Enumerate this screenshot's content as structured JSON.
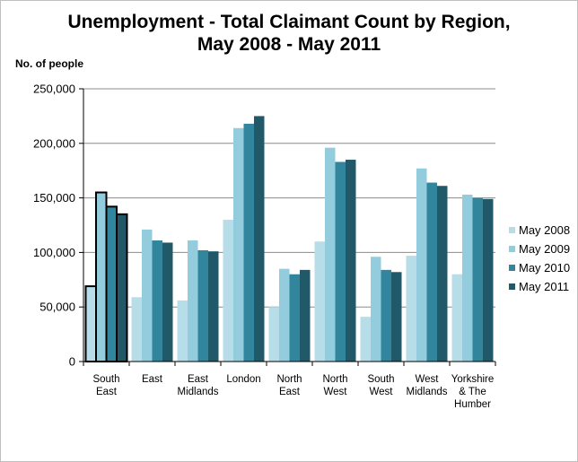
{
  "chart_data": {
    "type": "bar",
    "title_lines": [
      "Unemployment  - Total Claimant Count by Region,",
      "May 2008  - May 2011"
    ],
    "ylabel": "No. of people",
    "xlabel": "",
    "ylim": [
      0,
      250000
    ],
    "yticks": [
      0,
      50000,
      100000,
      150000,
      200000,
      250000
    ],
    "ytick_labels": [
      "0",
      "50,000",
      "100,000",
      "150,000",
      "200,000",
      "250,000"
    ],
    "grid": true,
    "legend_position": "right",
    "categories": [
      [
        "South",
        "East"
      ],
      [
        "East"
      ],
      [
        "East",
        "Midlands"
      ],
      [
        "London"
      ],
      [
        "North",
        "East"
      ],
      [
        "North",
        "West"
      ],
      [
        "South",
        "West"
      ],
      [
        "West",
        "Midlands"
      ],
      [
        "Yorkshire",
        "& The",
        "Humber"
      ]
    ],
    "highlighted_category_index": 0,
    "series": [
      {
        "name": "May 2008",
        "color": "#b7dee8",
        "values": [
          69000,
          59000,
          56000,
          130000,
          50000,
          110000,
          41000,
          97000,
          80000
        ]
      },
      {
        "name": "May 2009",
        "color": "#93cddd",
        "values": [
          155000,
          121000,
          111000,
          214000,
          85000,
          196000,
          96000,
          177000,
          153000
        ]
      },
      {
        "name": "May 2010",
        "color": "#31859c",
        "values": [
          142000,
          111000,
          102000,
          218000,
          80000,
          183000,
          84000,
          164000,
          150000
        ]
      },
      {
        "name": "May 2011",
        "color": "#215968",
        "values": [
          135000,
          109000,
          101000,
          225000,
          84000,
          185000,
          82000,
          161000,
          149000
        ]
      }
    ]
  }
}
